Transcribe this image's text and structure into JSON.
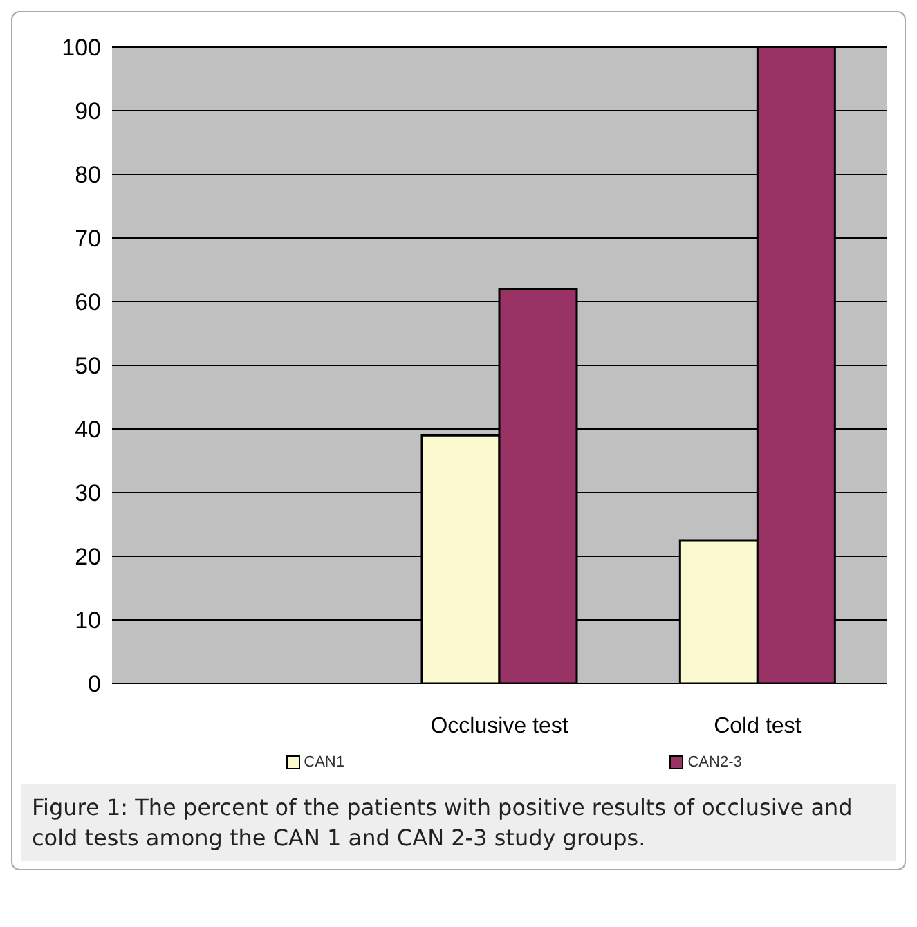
{
  "chart_data": {
    "type": "bar",
    "categories": [
      null,
      "Occlusive test",
      "Cold test"
    ],
    "series": [
      {
        "name": "CAN1",
        "color": "#fbf9cf",
        "values": [
          null,
          39,
          22.5
        ]
      },
      {
        "name": "CAN2-3",
        "color": "#993366",
        "values": [
          null,
          62,
          100
        ]
      }
    ],
    "ylim": [
      0,
      100
    ],
    "yticks": [
      0,
      10,
      20,
      30,
      40,
      50,
      60,
      70,
      80,
      90,
      100
    ],
    "grid": "y",
    "legend": "bottom",
    "annotations": [
      "Figure 1: The percent of the patients with positive results of occlusive and cold tests among the CAN 1 and CAN 2-3 study groups."
    ]
  }
}
